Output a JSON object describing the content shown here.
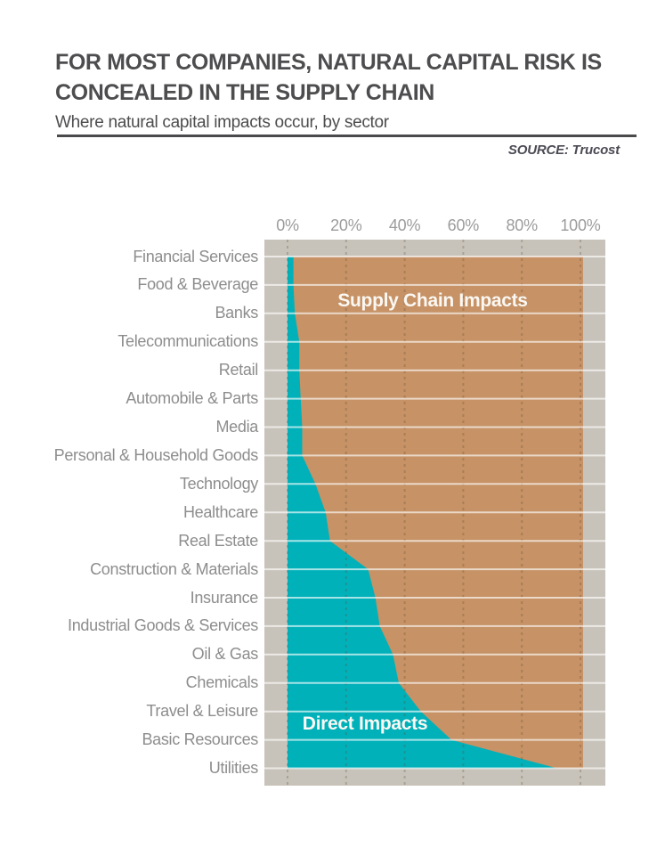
{
  "header": {
    "title_line1": "FOR MOST COMPANIES, NATURAL CAPITAL RISK IS",
    "title_line2": "CONCEALED IN THE SUPPLY CHAIN",
    "subtitle": "Where natural capital impacts occur, by sector",
    "source": "SOURCE: Trucost"
  },
  "chart_data": {
    "type": "area",
    "variant": "100%-stacked-horizontal",
    "title": "Where natural capital impacts occur, by sector",
    "x_axis": {
      "position": "top",
      "range": [
        0,
        100
      ],
      "tick_values": [
        0,
        20,
        40,
        60,
        80,
        100
      ],
      "tick_labels": [
        "0%",
        "20%",
        "40%",
        "60%",
        "80%",
        "100%"
      ],
      "gridlines": "dashed-vertical"
    },
    "categories": [
      "Financial Services",
      "Food & Beverage",
      "Banks",
      "Telecommunications",
      "Retail",
      "Automobile & Parts",
      "Media",
      "Personal & Household Goods",
      "Technology",
      "Healthcare",
      "Real Estate",
      "Construction & Materials",
      "Insurance",
      "Industrial Goods & Services",
      "Oil & Gas",
      "Chemicals",
      "Travel & Leisure",
      "Basic Resources",
      "Utilities"
    ],
    "series": [
      {
        "name": "Direct Impacts",
        "color": "#00b1ba",
        "values": [
          2,
          2,
          2.5,
          4,
          4,
          4.5,
          5,
          5,
          9.5,
          13,
          14.5,
          27.5,
          30,
          31.5,
          36,
          38,
          45.5,
          56,
          92
        ]
      },
      {
        "name": "Supply Chain Impacts",
        "color": "#c69266",
        "values": [
          98,
          98,
          97.5,
          96,
          96,
          95.5,
          95,
          95,
          90.5,
          87,
          85.5,
          72.5,
          70,
          68.5,
          64,
          62,
          54.5,
          44,
          8
        ]
      }
    ],
    "colors": {
      "direct": "#00b1ba",
      "supply_chain": "#c69266",
      "plot_background": "#c8c3ba",
      "gridline": "#5c4a32",
      "row_separator": "#ffffff",
      "axis_text": "#9c9c9c",
      "category_text": "#8d8d8d",
      "area_label_text": "#fbf8f3"
    },
    "legend": "labels-inside-areas"
  }
}
